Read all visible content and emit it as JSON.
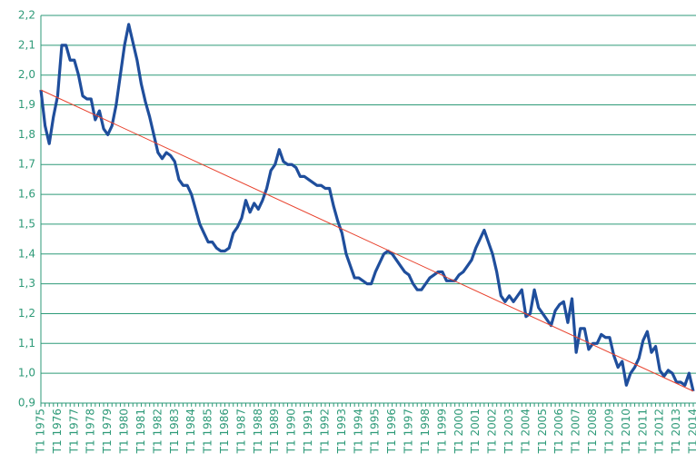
{
  "chart_data": {
    "type": "line",
    "categories": [
      "T1 1975",
      null,
      null,
      null,
      "T1 1976",
      null,
      null,
      null,
      "T1 1977",
      null,
      null,
      null,
      "T1 1978",
      null,
      null,
      null,
      "T1 1979",
      null,
      null,
      null,
      "T1 1980",
      null,
      null,
      null,
      "T1 1981",
      null,
      null,
      null,
      "T1 1982",
      null,
      null,
      null,
      "T1 1983",
      null,
      null,
      null,
      "T1 1984",
      null,
      null,
      null,
      "T1 1985",
      null,
      null,
      null,
      "T1 1986",
      null,
      null,
      null,
      "T1 1987",
      null,
      null,
      null,
      "T1 1988",
      null,
      null,
      null,
      "T1 1989",
      null,
      null,
      null,
      "T1 1990",
      null,
      null,
      null,
      "T1 1991",
      null,
      null,
      null,
      "T1 1992",
      null,
      null,
      null,
      "T1 1993",
      null,
      null,
      null,
      "T1 1994",
      null,
      null,
      null,
      "T1 1995",
      null,
      null,
      null,
      "T1 1996",
      null,
      null,
      null,
      "T1 1997",
      null,
      null,
      null,
      "T1 1998",
      null,
      null,
      null,
      "T1 1999",
      null,
      null,
      null,
      "T1 2000",
      null,
      null,
      null,
      "T1 2001",
      null,
      null,
      null,
      "T1 2002",
      null,
      null,
      null,
      "T1 2003",
      null,
      null,
      null,
      "T1 2004",
      null,
      null,
      null,
      "T1 2005",
      null,
      null,
      null,
      "T1 2006",
      null,
      null,
      null,
      "T1 2007",
      null,
      null,
      null,
      "T1 2008",
      null,
      null,
      null,
      "T1 2009",
      null,
      null,
      null,
      "T1 2010",
      null,
      null,
      null,
      "T1 2011",
      null,
      null,
      null,
      "T1 2012",
      null,
      null,
      null,
      "T1 2013",
      null,
      null,
      null,
      "T1 2014"
    ],
    "series": [
      {
        "color": "#1f4e9c",
        "values": [
          1.95,
          1.83,
          1.77,
          1.86,
          1.93,
          2.1,
          2.1,
          2.05,
          2.05,
          2.0,
          1.93,
          1.92,
          1.92,
          1.85,
          1.88,
          1.82,
          1.8,
          1.83,
          1.9,
          2.0,
          2.1,
          2.17,
          2.11,
          2.05,
          1.97,
          1.91,
          1.86,
          1.8,
          1.74,
          1.72,
          1.74,
          1.73,
          1.71,
          1.65,
          1.63,
          1.63,
          1.6,
          1.55,
          1.5,
          1.47,
          1.44,
          1.44,
          1.42,
          1.41,
          1.41,
          1.42,
          1.47,
          1.49,
          1.52,
          1.58,
          1.54,
          1.57,
          1.55,
          1.58,
          1.62,
          1.68,
          1.7,
          1.75,
          1.71,
          1.7,
          1.7,
          1.69,
          1.66,
          1.66,
          1.65,
          1.64,
          1.63,
          1.63,
          1.62,
          1.62,
          1.56,
          1.51,
          1.47,
          1.4,
          1.36,
          1.32,
          1.32,
          1.31,
          1.3,
          1.3,
          1.34,
          1.37,
          1.4,
          1.41,
          1.4,
          1.38,
          1.36,
          1.34,
          1.33,
          1.3,
          1.28,
          1.28,
          1.3,
          1.32,
          1.33,
          1.34,
          1.34,
          1.31,
          1.31,
          1.31,
          1.33,
          1.34,
          1.36,
          1.38,
          1.42,
          1.45,
          1.48,
          1.44,
          1.4,
          1.34,
          1.26,
          1.24,
          1.26,
          1.24,
          1.26,
          1.28,
          1.19,
          1.2,
          1.28,
          1.22,
          1.2,
          1.18,
          1.16,
          1.21,
          1.23,
          1.24,
          1.17,
          1.25,
          1.07,
          1.15,
          1.15,
          1.08,
          1.1,
          1.1,
          1.13,
          1.12,
          1.12,
          1.06,
          1.02,
          1.04,
          0.96,
          1.0,
          1.02,
          1.05,
          1.11,
          1.14,
          1.07,
          1.09,
          1.01,
          0.99,
          1.01,
          1.0,
          0.97,
          0.97,
          0.96,
          1.0,
          0.94
        ]
      }
    ],
    "trend": {
      "color": "#e8412c",
      "values": [
        1.95,
        0.94
      ]
    },
    "ylim": [
      0.9,
      2.2
    ],
    "yticks": [
      {
        "value": 0.9,
        "label": "0,9"
      },
      {
        "value": 1.0,
        "label": "1,0"
      },
      {
        "value": 1.1,
        "label": "1,1"
      },
      {
        "value": 1.2,
        "label": "1,2"
      },
      {
        "value": 1.3,
        "label": "1,3"
      },
      {
        "value": 1.4,
        "label": "1,4"
      },
      {
        "value": 1.5,
        "label": "1,5"
      },
      {
        "value": 1.6,
        "label": "1,6"
      },
      {
        "value": 1.7,
        "label": "1,7"
      },
      {
        "value": 1.8,
        "label": "1,8"
      },
      {
        "value": 1.9,
        "label": "1,9"
      },
      {
        "value": 2.0,
        "label": "2,0"
      },
      {
        "value": 2.1,
        "label": "2,1"
      },
      {
        "value": 2.2,
        "label": "2,2"
      }
    ],
    "grid": true,
    "grid_color": "#2e9a78"
  }
}
